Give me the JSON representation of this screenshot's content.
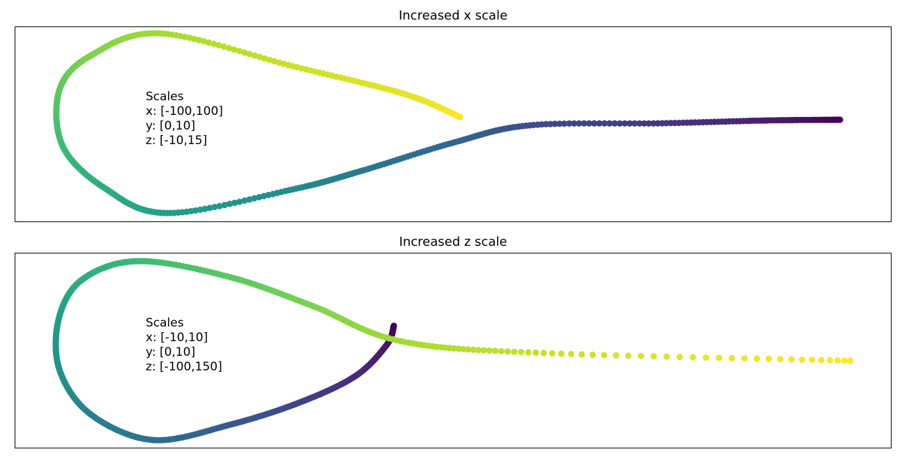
{
  "chart_data": [
    {
      "type": "scatter",
      "title": "Increased x scale",
      "xlabel": "",
      "ylabel": "",
      "colormap": "viridis",
      "x_ticks": [],
      "y_ticks": [],
      "annotation": {
        "heading": "Scales",
        "lines": [
          "x: [-100,100]",
          "y: [0,10]",
          "z: [-10,15]"
        ]
      },
      "curve_key_points": [
        {
          "t": 0.0,
          "x": 1205,
          "y": 172
        },
        {
          "t": 0.08,
          "x": 1100,
          "y": 173
        },
        {
          "t": 0.16,
          "x": 950,
          "y": 177
        },
        {
          "t": 0.24,
          "x": 760,
          "y": 180
        },
        {
          "t": 0.32,
          "x": 650,
          "y": 205
        },
        {
          "t": 0.4,
          "x": 520,
          "y": 245
        },
        {
          "t": 0.48,
          "x": 420,
          "y": 272
        },
        {
          "t": 0.56,
          "x": 240,
          "y": 306
        },
        {
          "t": 0.62,
          "x": 150,
          "y": 270
        },
        {
          "t": 0.68,
          "x": 90,
          "y": 210
        },
        {
          "t": 0.74,
          "x": 85,
          "y": 130
        },
        {
          "t": 0.8,
          "x": 130,
          "y": 80
        },
        {
          "t": 0.86,
          "x": 230,
          "y": 48
        },
        {
          "t": 0.92,
          "x": 420,
          "y": 95
        },
        {
          "t": 0.96,
          "x": 580,
          "y": 135
        },
        {
          "t": 1.0,
          "x": 660,
          "y": 168
        }
      ]
    },
    {
      "type": "scatter",
      "title": "Increased z scale",
      "xlabel": "",
      "ylabel": "",
      "colormap": "viridis",
      "x_ticks": [],
      "y_ticks": [],
      "annotation": {
        "heading": "Scales",
        "lines": [
          "x: [-10,10]",
          "y: [0,10]",
          "z: [-100,150]"
        ]
      },
      "curve_key_points": [
        {
          "t": 0.0,
          "x": 565,
          "y": 468
        },
        {
          "t": 0.06,
          "x": 555,
          "y": 495
        },
        {
          "t": 0.12,
          "x": 510,
          "y": 540
        },
        {
          "t": 0.2,
          "x": 430,
          "y": 578
        },
        {
          "t": 0.28,
          "x": 330,
          "y": 610
        },
        {
          "t": 0.36,
          "x": 220,
          "y": 632
        },
        {
          "t": 0.44,
          "x": 130,
          "y": 595
        },
        {
          "t": 0.5,
          "x": 85,
          "y": 530
        },
        {
          "t": 0.56,
          "x": 85,
          "y": 455
        },
        {
          "t": 0.62,
          "x": 120,
          "y": 400
        },
        {
          "t": 0.68,
          "x": 200,
          "y": 375
        },
        {
          "t": 0.74,
          "x": 330,
          "y": 398
        },
        {
          "t": 0.8,
          "x": 450,
          "y": 440
        },
        {
          "t": 0.86,
          "x": 575,
          "y": 490
        },
        {
          "t": 0.92,
          "x": 780,
          "y": 507
        },
        {
          "t": 1.0,
          "x": 1220,
          "y": 518
        }
      ]
    }
  ]
}
